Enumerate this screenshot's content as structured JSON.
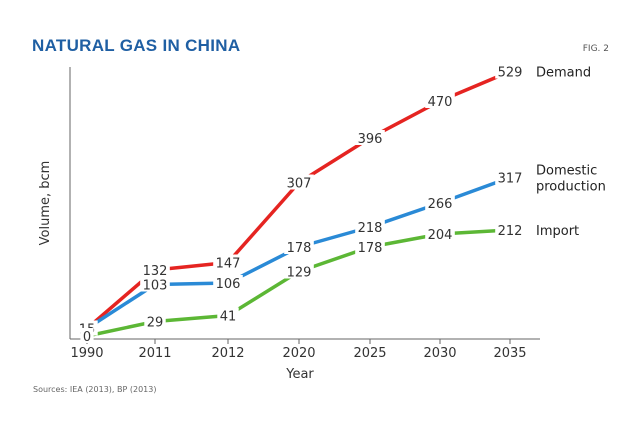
{
  "chart_data": {
    "type": "line",
    "title": "NATURAL GAS IN CHINA",
    "figure_label": "FIG. 2",
    "xlabel": "Year",
    "ylabel": "Volume, bcm",
    "categories": [
      "1990",
      "2011",
      "2012",
      "2020",
      "2025",
      "2030",
      "2035"
    ],
    "ylim": [
      0,
      560
    ],
    "grid": false,
    "series": [
      {
        "name": "Demand",
        "labels": [
          "Demand"
        ],
        "color": "#e52421",
        "values": [
          15,
          132,
          147,
          307,
          396,
          470,
          529
        ]
      },
      {
        "name": "Domestic production",
        "labels": [
          "Domestic",
          "production"
        ],
        "color": "#2a8ad6",
        "values": [
          15,
          103,
          106,
          178,
          218,
          266,
          317
        ]
      },
      {
        "name": "Import",
        "labels": [
          "Import"
        ],
        "color": "#5cb735",
        "values": [
          0,
          29,
          41,
          129,
          178,
          204,
          212
        ]
      }
    ],
    "source": "Sources: IEA (2013), BP (2013)",
    "colors": {
      "title": "#1f5fa3",
      "axis": "#666666",
      "halo": "#ffffff"
    }
  }
}
